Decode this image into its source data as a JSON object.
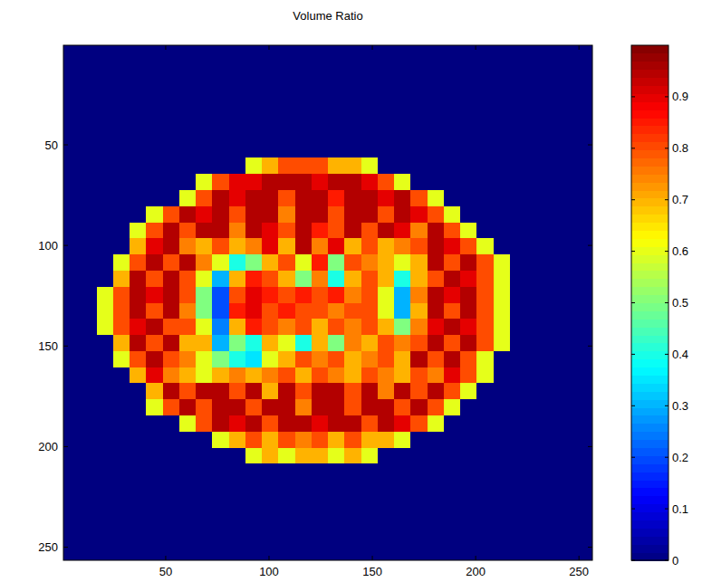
{
  "chart_data": {
    "type": "heatmap",
    "title": "Volume Ratio",
    "color": "jet",
    "xlim": [
      0.5,
      256.5
    ],
    "ylim": [
      256.5,
      0.5
    ],
    "xticks": [
      50,
      100,
      150,
      200,
      250
    ],
    "yticks": [
      50,
      100,
      150,
      200,
      250
    ],
    "colorbar": {
      "range": [
        0,
        1
      ],
      "ticks": [
        0,
        0.1,
        0.2,
        0.3,
        0.4,
        0.5,
        0.6,
        0.7,
        0.8,
        0.9
      ]
    },
    "cells": [
      [
        0,
        0,
        0,
        0,
        0,
        0,
        0,
        0,
        0,
        0,
        0,
        0,
        0,
        0,
        0,
        0,
        0,
        0,
        0,
        0,
        0,
        0,
        0,
        0,
        0,
        0,
        0,
        0,
        0,
        0,
        0,
        0
      ],
      [
        0,
        0,
        0,
        0,
        0,
        0,
        0,
        0,
        0,
        0,
        0,
        0,
        0,
        0,
        0,
        0,
        0,
        0,
        0,
        0,
        0,
        0,
        0,
        0,
        0,
        0,
        0,
        0,
        0,
        0,
        0,
        0
      ],
      [
        0,
        0,
        0,
        0,
        0,
        0,
        0,
        0,
        0,
        0,
        0,
        0,
        0,
        0,
        0,
        0,
        0,
        0,
        0,
        0,
        0,
        0,
        0,
        0,
        0,
        0,
        0,
        0,
        0,
        0,
        0,
        0
      ],
      [
        0,
        0,
        0,
        0,
        0,
        0,
        0,
        0,
        0,
        0,
        0,
        0,
        0,
        0,
        0,
        0,
        0,
        0,
        0,
        0,
        0,
        0,
        0,
        0,
        0,
        0,
        0,
        0,
        0,
        0,
        0,
        0
      ],
      [
        0,
        0,
        0,
        0,
        0,
        0,
        0,
        0,
        0,
        0,
        0,
        0,
        0,
        0,
        0,
        0,
        0,
        0,
        0,
        0,
        0,
        0,
        0,
        0,
        0,
        0,
        0,
        0,
        0,
        0,
        0,
        0
      ],
      [
        0,
        0,
        0,
        0,
        0,
        0,
        0,
        0,
        0,
        0,
        0,
        0,
        0,
        0,
        0,
        0,
        0,
        0,
        0,
        0,
        0,
        0,
        0,
        0,
        0,
        0,
        0,
        0,
        0,
        0,
        0,
        0
      ],
      [
        0,
        0,
        0,
        0,
        0,
        0,
        0,
        0,
        0,
        0,
        0,
        0,
        0,
        0,
        0,
        0,
        0,
        0,
        0,
        0,
        0,
        0,
        0,
        0,
        0,
        0,
        0,
        0,
        0,
        0,
        0,
        0
      ],
      [
        0,
        0,
        0,
        0,
        0,
        0,
        0,
        0,
        0,
        0,
        0,
        0.6,
        0.7,
        0.8,
        0.8,
        0.8,
        0.7,
        0.7,
        0.6,
        0,
        0,
        0,
        0,
        0,
        0,
        0,
        0,
        0,
        0,
        0,
        0,
        0
      ],
      [
        0,
        0,
        0,
        0,
        0,
        0,
        0,
        0,
        0.6,
        0.8,
        0.9,
        0.9,
        0.95,
        0.95,
        0.95,
        0.9,
        0.95,
        0.95,
        0.9,
        0.8,
        0.6,
        0,
        0,
        0,
        0,
        0,
        0,
        0,
        0,
        0,
        0,
        0
      ],
      [
        0,
        0,
        0,
        0,
        0,
        0,
        0,
        0.6,
        0.8,
        0.95,
        0.9,
        0.95,
        0.95,
        0.8,
        0.95,
        0.95,
        0.85,
        0.95,
        0.95,
        0.9,
        0.95,
        0.8,
        0.6,
        0,
        0,
        0,
        0,
        0,
        0,
        0,
        0,
        0
      ],
      [
        0,
        0,
        0,
        0,
        0,
        0.6,
        0.8,
        0.95,
        0.9,
        0.95,
        0.8,
        0.95,
        0.95,
        0.75,
        0.95,
        0.95,
        0.8,
        0.95,
        0.95,
        0.8,
        0.95,
        0.9,
        0.8,
        0.6,
        0,
        0,
        0,
        0,
        0,
        0,
        0,
        0
      ],
      [
        0,
        0,
        0,
        0,
        0.6,
        0.8,
        0.95,
        0.8,
        0.95,
        0.95,
        0.75,
        0.95,
        0.9,
        0.8,
        0.95,
        0.85,
        0.8,
        0.95,
        0.8,
        0.95,
        0.9,
        0.75,
        0.95,
        0.8,
        0.6,
        0,
        0,
        0,
        0,
        0,
        0,
        0
      ],
      [
        0,
        0,
        0,
        0,
        0.7,
        0.9,
        0.95,
        0.75,
        0.7,
        0.8,
        0.7,
        0.75,
        0.9,
        0.7,
        0.95,
        0.75,
        0.9,
        0.7,
        0.8,
        0.7,
        0.75,
        0.8,
        0.95,
        0.9,
        0.8,
        0.6,
        0,
        0,
        0,
        0,
        0,
        0
      ],
      [
        0,
        0,
        0,
        0.6,
        0.8,
        0.95,
        0.8,
        0.95,
        0.75,
        0.6,
        0.4,
        0.5,
        0.7,
        0.8,
        0.6,
        0.85,
        0.5,
        0.8,
        0.75,
        0.7,
        0.6,
        0.7,
        0.95,
        0.8,
        0.95,
        0.8,
        0.6,
        0,
        0,
        0,
        0,
        0
      ],
      [
        0,
        0,
        0,
        0.7,
        0.95,
        0.8,
        0.95,
        0.8,
        0.6,
        0.3,
        0.7,
        0.85,
        0.8,
        0.7,
        0.5,
        0.75,
        0.4,
        0.7,
        0.8,
        0.7,
        0.4,
        0.7,
        0.8,
        0.95,
        0.9,
        0.8,
        0.6,
        0,
        0,
        0,
        0,
        0
      ],
      [
        0,
        0,
        0.6,
        0.8,
        0.95,
        0.9,
        0.95,
        0.8,
        0.5,
        0.2,
        0.8,
        0.9,
        0.85,
        0.8,
        0.85,
        0.8,
        0.85,
        0.75,
        0.8,
        0.6,
        0.3,
        0.75,
        0.95,
        0.9,
        0.95,
        0.8,
        0.6,
        0,
        0,
        0,
        0,
        0
      ],
      [
        0,
        0,
        0.6,
        0.8,
        0.95,
        0.8,
        0.95,
        0.75,
        0.5,
        0.2,
        0.85,
        0.9,
        0.8,
        0.85,
        0.8,
        0.8,
        0.75,
        0.8,
        0.8,
        0.6,
        0.3,
        0.7,
        0.95,
        0.8,
        0.95,
        0.8,
        0.6,
        0,
        0,
        0,
        0,
        0
      ],
      [
        0,
        0,
        0.6,
        0.8,
        0.9,
        0.95,
        0.8,
        0.8,
        0.6,
        0.25,
        0.7,
        0.85,
        0.8,
        0.75,
        0.8,
        0.7,
        0.8,
        0.75,
        0.8,
        0.7,
        0.5,
        0.75,
        0.9,
        0.95,
        0.9,
        0.8,
        0.6,
        0,
        0,
        0,
        0,
        0
      ],
      [
        0,
        0,
        0,
        0.7,
        0.95,
        0.8,
        0.95,
        0.7,
        0.7,
        0.3,
        0.5,
        0.4,
        0.7,
        0.6,
        0.4,
        0.7,
        0.5,
        0.75,
        0.7,
        0.8,
        0.75,
        0.8,
        0.95,
        0.8,
        0.95,
        0.8,
        0.6,
        0,
        0,
        0,
        0,
        0
      ],
      [
        0,
        0,
        0,
        0.6,
        0.8,
        0.95,
        0.8,
        0.75,
        0.6,
        0.5,
        0.4,
        0.35,
        0.6,
        0.7,
        0.8,
        0.75,
        0.8,
        0.7,
        0.75,
        0.8,
        0.7,
        0.95,
        0.8,
        0.95,
        0.8,
        0.6,
        0,
        0,
        0,
        0,
        0,
        0
      ],
      [
        0,
        0,
        0,
        0,
        0.7,
        0.9,
        0.75,
        0.7,
        0.6,
        0.7,
        0.75,
        0.7,
        0.75,
        0.8,
        0.7,
        0.8,
        0.75,
        0.7,
        0.8,
        0.75,
        0.7,
        0.8,
        0.75,
        0.9,
        0.8,
        0.6,
        0,
        0,
        0,
        0,
        0,
        0
      ],
      [
        0,
        0,
        0,
        0,
        0,
        0.7,
        0.95,
        0.8,
        0.95,
        0.95,
        0.8,
        0.95,
        0.7,
        0.95,
        0.8,
        0.95,
        0.95,
        0.8,
        0.95,
        0.75,
        0.95,
        0.8,
        0.95,
        0.8,
        0.6,
        0,
        0,
        0,
        0,
        0,
        0,
        0
      ],
      [
        0,
        0,
        0,
        0,
        0,
        0.6,
        0.8,
        0.95,
        0.8,
        0.95,
        0.95,
        0.8,
        0.95,
        0.95,
        0.75,
        0.95,
        0.95,
        0.8,
        0.95,
        0.95,
        0.8,
        0.95,
        0.8,
        0.6,
        0,
        0,
        0,
        0,
        0,
        0,
        0,
        0
      ],
      [
        0,
        0,
        0,
        0,
        0,
        0,
        0,
        0.6,
        0.8,
        0.95,
        0.9,
        0.95,
        0.8,
        0.95,
        0.95,
        0.9,
        0.95,
        0.95,
        0.8,
        0.95,
        0.9,
        0.8,
        0.6,
        0,
        0,
        0,
        0,
        0,
        0,
        0,
        0,
        0
      ],
      [
        0,
        0,
        0,
        0,
        0,
        0,
        0,
        0,
        0,
        0.6,
        0.7,
        0.8,
        0.7,
        0.8,
        0.75,
        0.8,
        0.7,
        0.8,
        0.7,
        0.7,
        0.6,
        0,
        0,
        0,
        0,
        0,
        0,
        0,
        0,
        0,
        0,
        0
      ],
      [
        0,
        0,
        0,
        0,
        0,
        0,
        0,
        0,
        0,
        0,
        0,
        0.6,
        0.7,
        0.6,
        0.7,
        0.7,
        0.6,
        0.7,
        0.6,
        0,
        0,
        0,
        0,
        0,
        0,
        0,
        0,
        0,
        0,
        0,
        0,
        0
      ],
      [
        0,
        0,
        0,
        0,
        0,
        0,
        0,
        0,
        0,
        0,
        0,
        0,
        0,
        0,
        0,
        0,
        0,
        0,
        0,
        0,
        0,
        0,
        0,
        0,
        0,
        0,
        0,
        0,
        0,
        0,
        0,
        0
      ],
      [
        0,
        0,
        0,
        0,
        0,
        0,
        0,
        0,
        0,
        0,
        0,
        0,
        0,
        0,
        0,
        0,
        0,
        0,
        0,
        0,
        0,
        0,
        0,
        0,
        0,
        0,
        0,
        0,
        0,
        0,
        0,
        0
      ],
      [
        0,
        0,
        0,
        0,
        0,
        0,
        0,
        0,
        0,
        0,
        0,
        0,
        0,
        0,
        0,
        0,
        0,
        0,
        0,
        0,
        0,
        0,
        0,
        0,
        0,
        0,
        0,
        0,
        0,
        0,
        0,
        0
      ],
      [
        0,
        0,
        0,
        0,
        0,
        0,
        0,
        0,
        0,
        0,
        0,
        0,
        0,
        0,
        0,
        0,
        0,
        0,
        0,
        0,
        0,
        0,
        0,
        0,
        0,
        0,
        0,
        0,
        0,
        0,
        0,
        0
      ],
      [
        0,
        0,
        0,
        0,
        0,
        0,
        0,
        0,
        0,
        0,
        0,
        0,
        0,
        0,
        0,
        0,
        0,
        0,
        0,
        0,
        0,
        0,
        0,
        0,
        0,
        0,
        0,
        0,
        0,
        0,
        0,
        0
      ],
      [
        0,
        0,
        0,
        0,
        0,
        0,
        0,
        0,
        0,
        0,
        0,
        0,
        0,
        0,
        0,
        0,
        0,
        0,
        0,
        0,
        0,
        0,
        0,
        0,
        0,
        0,
        0,
        0,
        0,
        0,
        0,
        0
      ]
    ]
  }
}
